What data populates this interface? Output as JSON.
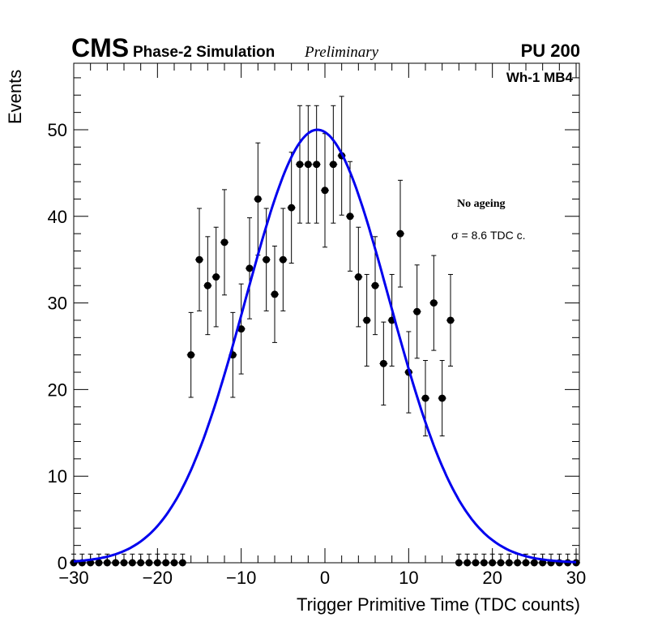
{
  "chart_data": {
    "type": "scatter",
    "title": "",
    "header": {
      "experiment": "CMS",
      "subtitle": "Phase-2 Simulation",
      "status": "Preliminary",
      "pileup": "PU 200"
    },
    "region_label": "Wh-1 MB4",
    "annotations": {
      "condition": "No ageing",
      "sigma": "σ = 8.6 TDC c."
    },
    "xlabel": "Trigger Primitive Time (TDC counts)",
    "ylabel": "Events",
    "xlim": [
      -30,
      30
    ],
    "ylim": [
      0,
      57.5
    ],
    "xticks": [
      "−30",
      "−20",
      "−10",
      "0",
      "10",
      "20",
      "30"
    ],
    "xtick_values": [
      -30,
      -20,
      -10,
      0,
      10,
      20,
      30
    ],
    "yticks": [
      "0",
      "10",
      "20",
      "30",
      "40",
      "50"
    ],
    "ytick_values": [
      0,
      10,
      20,
      30,
      40,
      50
    ],
    "series": [
      {
        "name": "data",
        "x": [
          -30,
          -29,
          -28,
          -27,
          -26,
          -25,
          -24,
          -23,
          -22,
          -21,
          -20,
          -19,
          -18,
          -17,
          -16,
          -15,
          -14,
          -13,
          -12,
          -11,
          -10,
          -9,
          -8,
          -7,
          -6,
          -5,
          -4,
          -3,
          -2,
          -1,
          0,
          1,
          2,
          3,
          4,
          5,
          6,
          7,
          8,
          9,
          10,
          11,
          12,
          13,
          14,
          15,
          16,
          17,
          18,
          19,
          20,
          21,
          22,
          23,
          24,
          25,
          26,
          27,
          28,
          29,
          30
        ],
        "y": [
          0,
          0,
          0,
          0,
          0,
          0,
          0,
          0,
          0,
          0,
          0,
          0,
          0,
          0,
          24,
          35,
          32,
          33,
          37,
          24,
          27,
          34,
          42,
          35,
          31,
          35,
          41,
          46,
          46,
          46,
          43,
          46,
          47,
          40,
          33,
          28,
          32,
          23,
          28,
          38,
          22,
          29,
          19,
          30,
          19,
          28,
          0,
          0,
          0,
          0,
          0,
          0,
          0,
          0,
          0,
          0,
          0,
          0,
          0,
          0,
          0
        ],
        "error": "sqrt(N)"
      },
      {
        "name": "gaussian fit",
        "type": "line",
        "amplitude": 50,
        "mean": -0.9,
        "sigma": 8.6,
        "color": "#0000ee"
      }
    ]
  }
}
